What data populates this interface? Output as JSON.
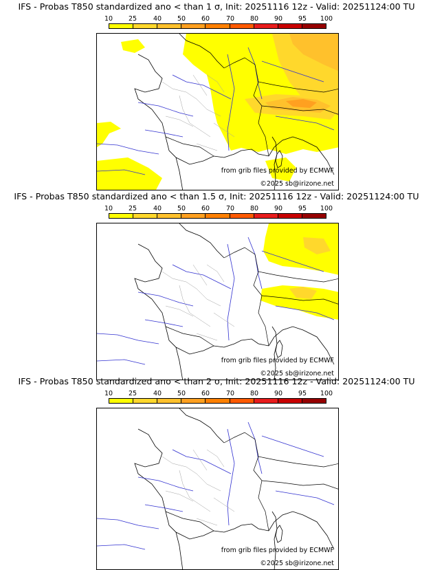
{
  "scale": {
    "labels": [
      "10",
      "25",
      "40",
      "50",
      "60",
      "70",
      "80",
      "90",
      "95",
      "100"
    ],
    "colors": [
      "#ffff00",
      "#ffd82c",
      "#ffc12c",
      "#ffa020",
      "#ff8000",
      "#ff5a00",
      "#e81c1c",
      "#c80000",
      "#960000",
      "#5a0000"
    ]
  },
  "panels": [
    {
      "title": "IFS - Probas T850  standardized ano < than 1 σ, Init: 20251116 12z - Valid: 20251124:00 TU",
      "source_credit": "from grib files provided by ECMWF",
      "copyright": "©2025 sb@irizone.net"
    },
    {
      "title": "IFS - Probas T850  standardized ano < than 1.5 σ, Init: 20251116 12z - Valid: 20251124:00 TU",
      "source_credit": "from grib files provided by ECMWF",
      "copyright": "©2025 sb@irizone.net"
    },
    {
      "title": "IFS - Probas T850  standardized ano < than 2 σ, Init: 20251116 12z - Valid: 20251124:00 TU",
      "source_credit": "from grib files provided by ECMWF",
      "copyright": "©2025 sb@irizone.net"
    }
  ]
}
